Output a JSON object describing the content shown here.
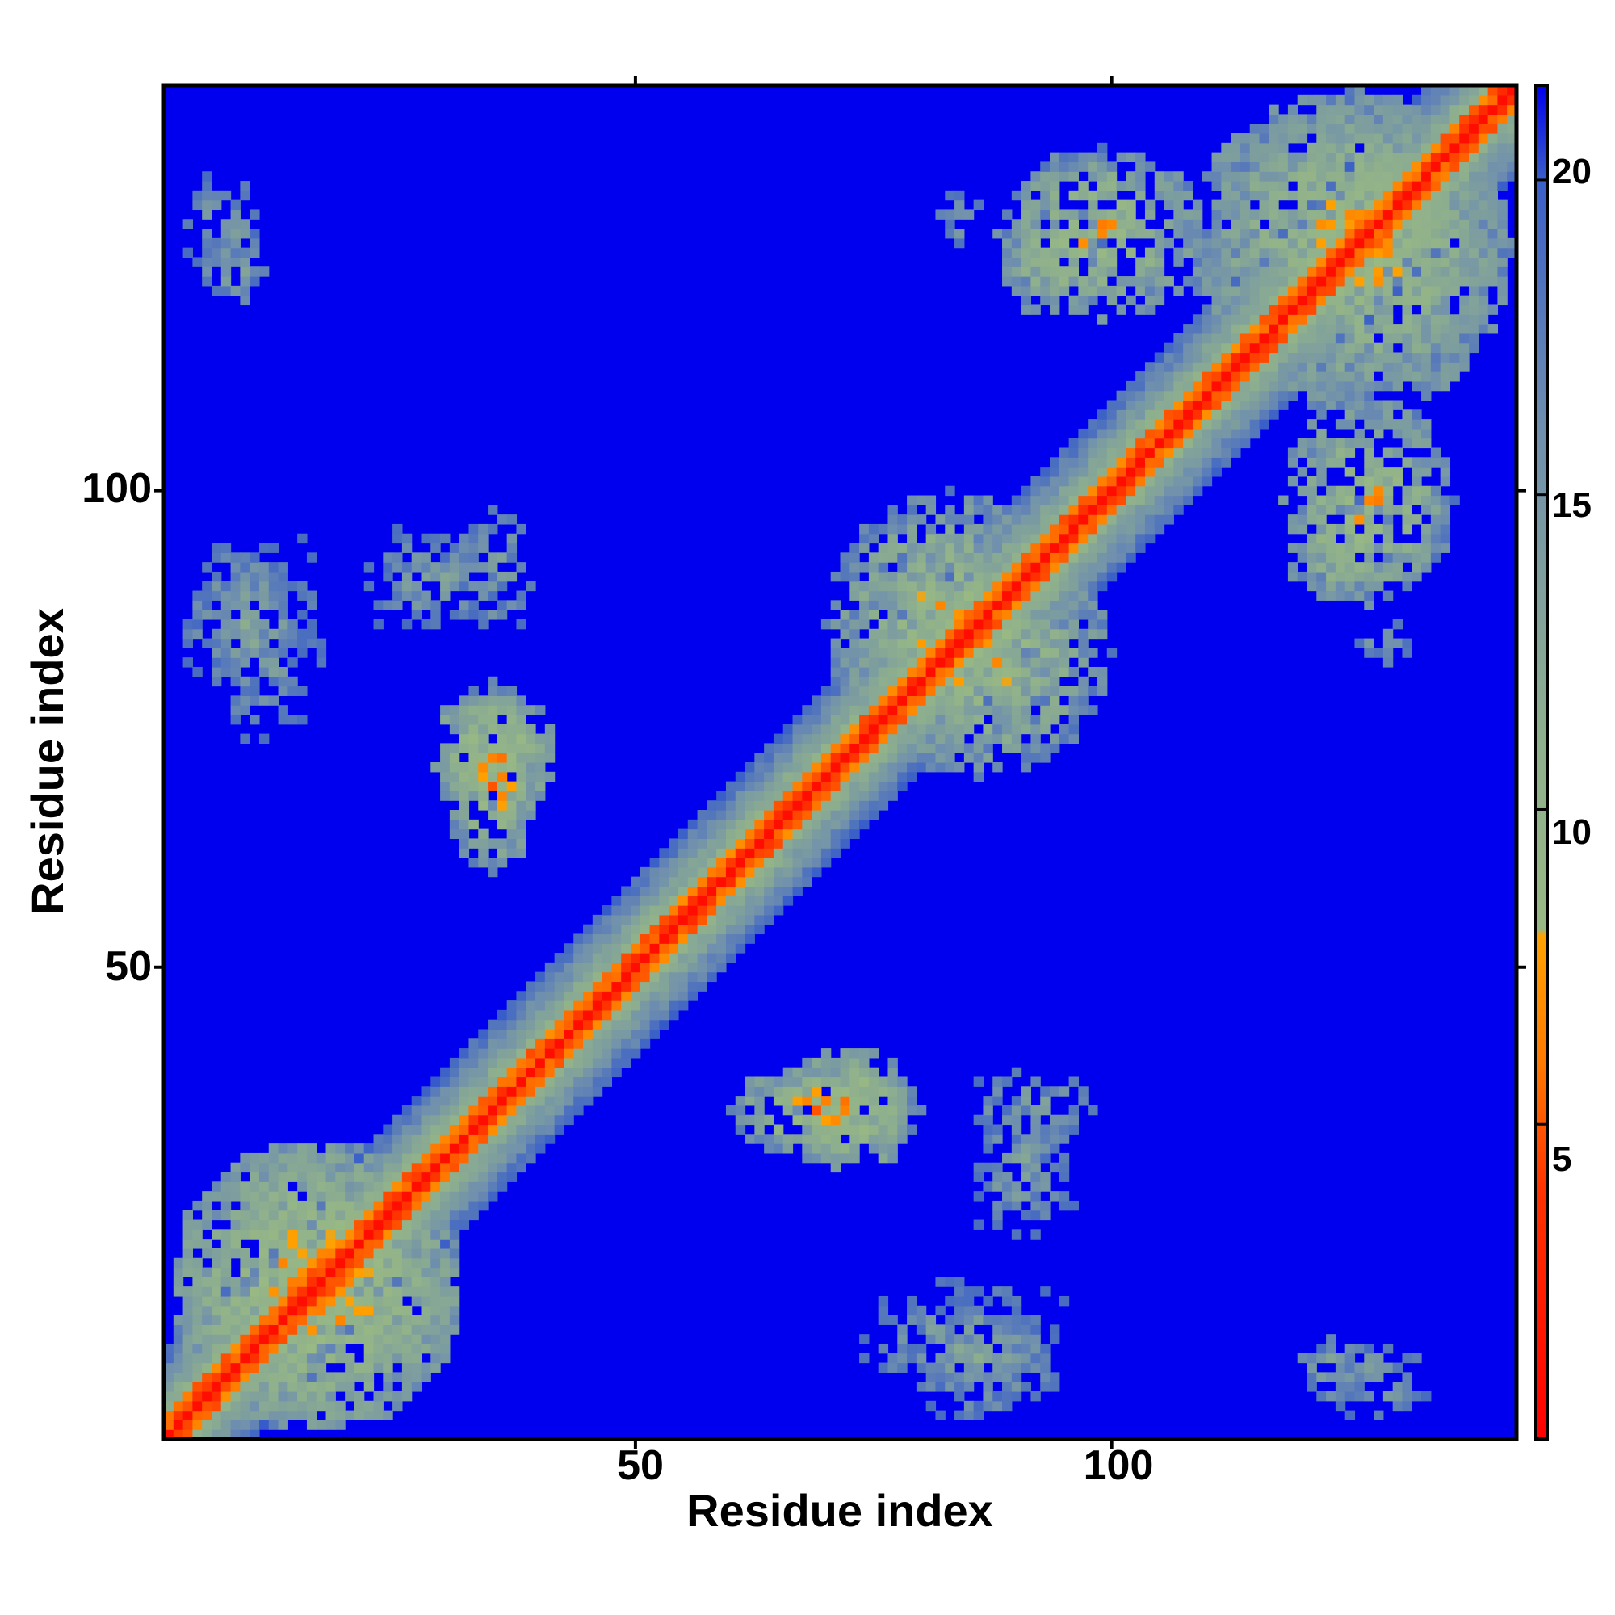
{
  "chart_data": {
    "type": "heatmap",
    "title": "",
    "xlabel": "Residue index",
    "ylabel": "Residue index",
    "n_residues": 142,
    "xlim": [
      1,
      142
    ],
    "ylim": [
      1,
      142
    ],
    "x_ticks": [
      50,
      100
    ],
    "y_ticks": [
      50,
      100
    ],
    "x_tick_labels": [
      "50",
      "100"
    ],
    "y_tick_labels": [
      "50",
      "100"
    ],
    "colorbar": {
      "range": [
        0,
        21.5
      ],
      "ticks": [
        5,
        10,
        15,
        20
      ],
      "tick_labels": [
        "5",
        "10",
        "15",
        "20"
      ],
      "stops": [
        {
          "value": 0,
          "color": "#ff0000"
        },
        {
          "value": 4,
          "color": "#ff3300"
        },
        {
          "value": 6,
          "color": "#ff7a00"
        },
        {
          "value": 8,
          "color": "#ffa200"
        },
        {
          "value": 8.1,
          "color": "#98b884"
        },
        {
          "value": 11,
          "color": "#8fb08c"
        },
        {
          "value": 16,
          "color": "#6f8fae"
        },
        {
          "value": 20,
          "color": "#3a5fc8"
        },
        {
          "value": 21.5,
          "color": "#0000ee"
        }
      ]
    },
    "background_value": 21.5,
    "background_color": "#0000ee",
    "diagonal_band": {
      "core_value": 1,
      "inner_width": 2,
      "outer_width": 9
    },
    "contact_clusters": [
      {
        "x_range": [
          1,
          32
        ],
        "y_range": [
          1,
          32
        ],
        "min_value": 4
      },
      {
        "x_range": [
          28,
          42
        ],
        "y_range": [
          66,
          79
        ],
        "min_value": 4
      },
      {
        "x_range": [
          60,
          80
        ],
        "y_range": [
          30,
          40
        ],
        "min_value": 4
      },
      {
        "x_range": [
          72,
          100
        ],
        "y_range": [
          70,
          96
        ],
        "min_value": 5
      },
      {
        "x_range": [
          88,
          110
        ],
        "y_range": [
          118,
          136
        ],
        "min_value": 5
      },
      {
        "x_range": [
          110,
          142
        ],
        "y_range": [
          108,
          142
        ],
        "min_value": 5
      },
      {
        "x_range": [
          118,
          130
        ],
        "y_range": [
          88,
          100
        ],
        "min_value": 6
      },
      {
        "x_range": [
          72,
          98
        ],
        "y_range": [
          3,
          18
        ],
        "min_value": 10
      },
      {
        "x_range": [
          83,
          100
        ],
        "y_range": [
          30,
          40
        ],
        "min_value": 10
      },
      {
        "x_range": [
          1,
          16
        ],
        "y_range": [
          78,
          96
        ],
        "min_value": 10
      },
      {
        "x_range": [
          20,
          37
        ],
        "y_range": [
          84,
          97
        ],
        "min_value": 10
      },
      {
        "x_range": [
          2,
          12
        ],
        "y_range": [
          122,
          134
        ],
        "min_value": 10
      },
      {
        "x_range": [
          118,
          128
        ],
        "y_range": [
          3,
          13
        ],
        "min_value": 10
      },
      {
        "x_range": [
          122,
          134
        ],
        "y_range": [
          80,
          88
        ],
        "min_value": 12
      }
    ]
  }
}
